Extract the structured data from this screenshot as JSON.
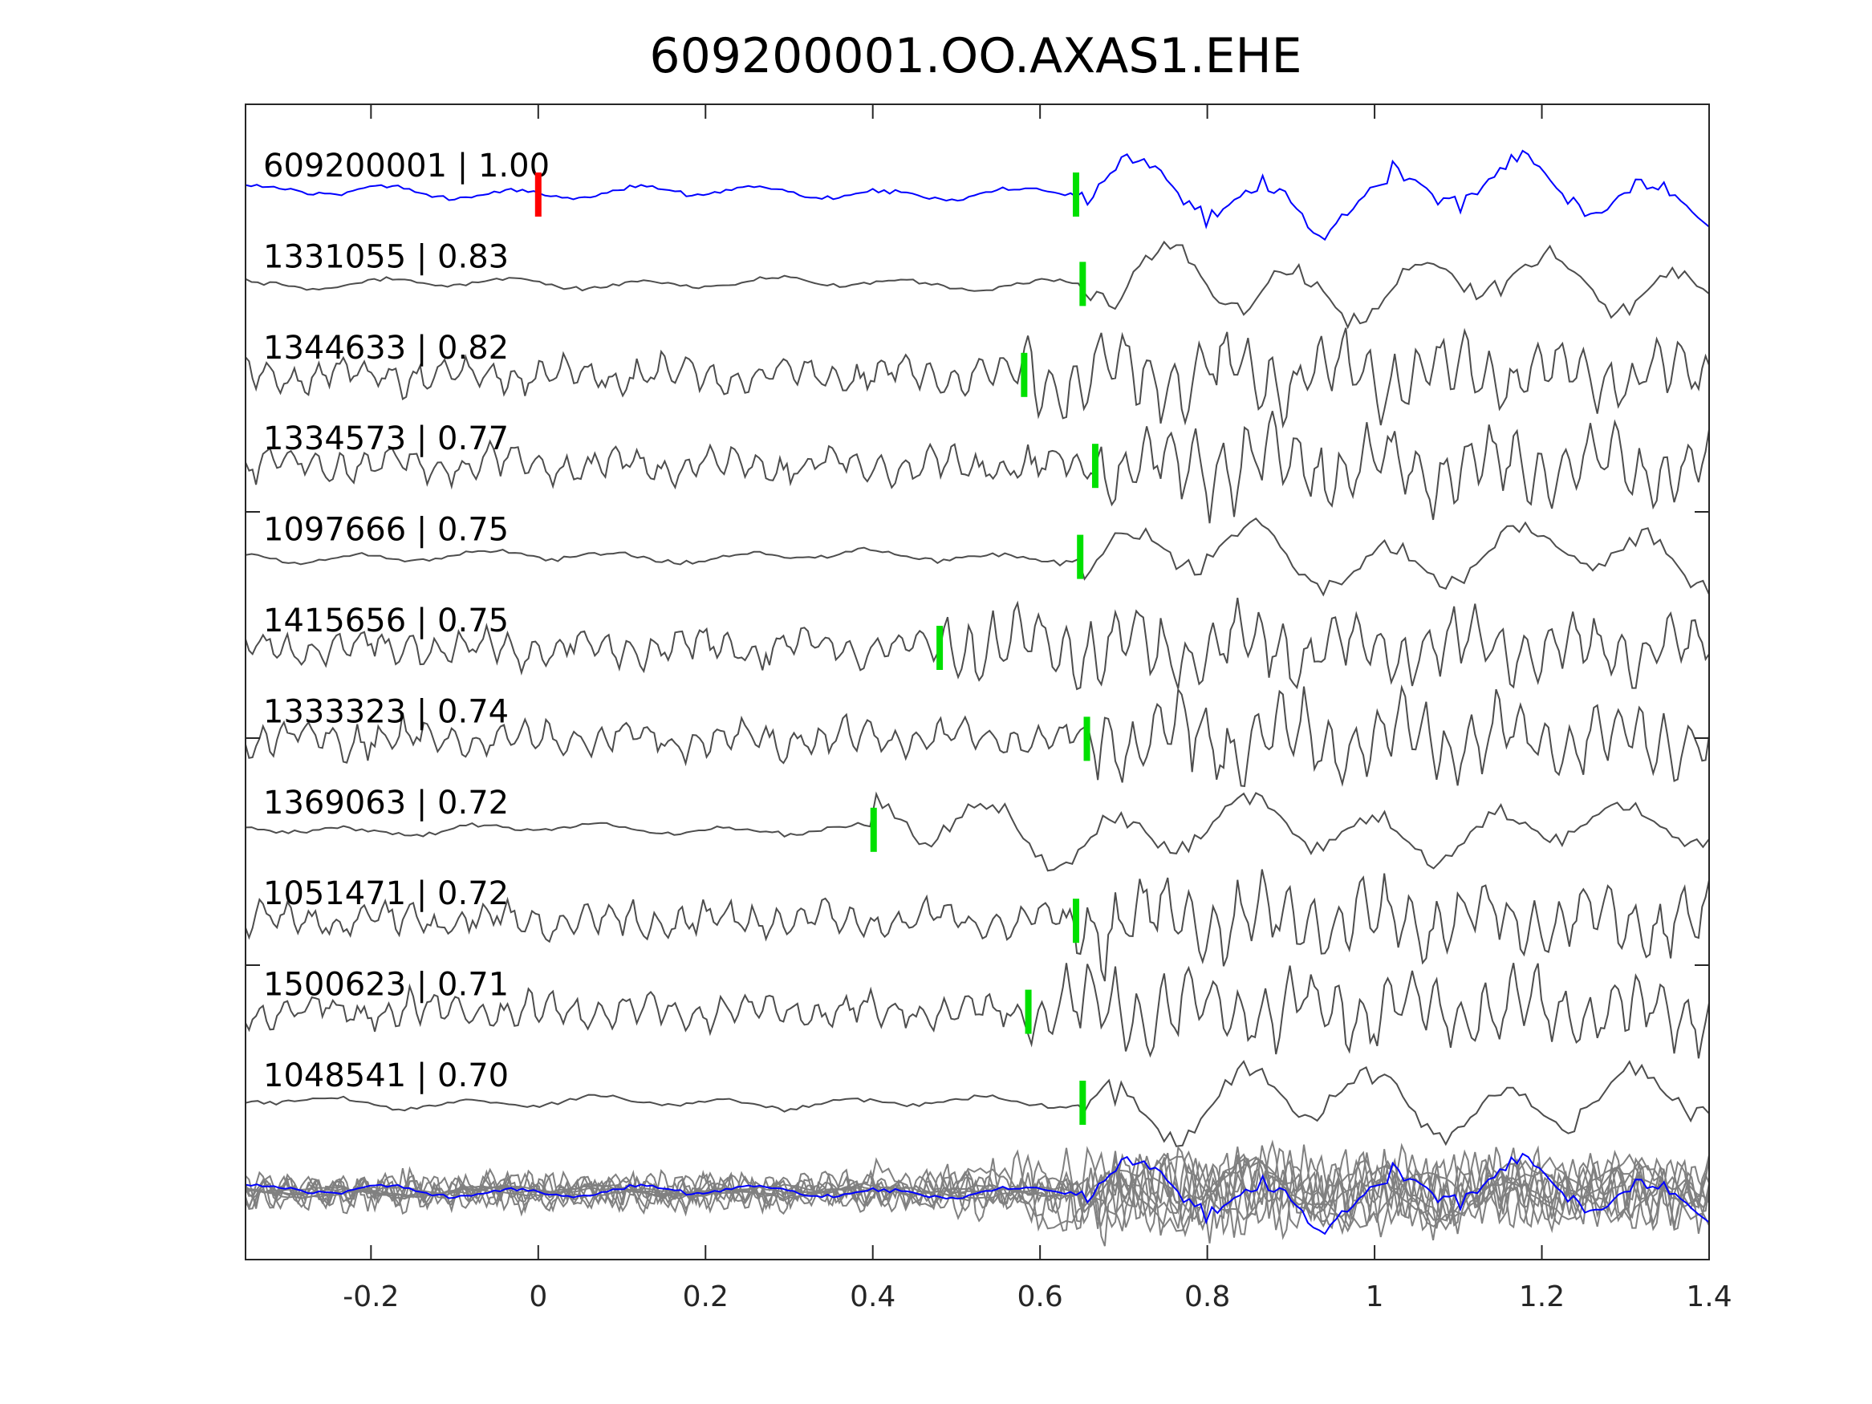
{
  "chart_data": {
    "type": "line",
    "title": "609200001.OO.AXAS1.EHE",
    "xlabel": "",
    "ylabel": "",
    "xlim": [
      -0.35,
      1.4
    ],
    "xticks": [
      "-0.2",
      "0",
      "0.2",
      "0.4",
      "0.6",
      "0.8",
      "1",
      "1.2",
      "1.4"
    ],
    "xtick_values": [
      -0.2,
      0,
      0.2,
      0.4,
      0.6,
      0.8,
      1.0,
      1.2,
      1.4
    ],
    "grid": false,
    "colors": {
      "reference": "#0000ff",
      "traces": "#4d4d4d",
      "stack": "#808080",
      "reference_pick": "#ff0000",
      "picks": "#00e000"
    },
    "traces": [
      {
        "label": "609200001 | 1.00",
        "id": "609200001",
        "cc": 1.0,
        "pick": 0.0,
        "pick2": 0.643,
        "reference": true
      },
      {
        "label": "1331055 | 0.83",
        "id": "1331055",
        "cc": 0.83,
        "pick": 0.651
      },
      {
        "label": "1344633 | 0.82",
        "id": "1344633",
        "cc": 0.82,
        "pick": 0.581
      },
      {
        "label": "1334573 | 0.77",
        "id": "1334573",
        "cc": 0.77,
        "pick": 0.666
      },
      {
        "label": "1097666 | 0.75",
        "id": "1097666",
        "cc": 0.75,
        "pick": 0.648
      },
      {
        "label": "1415656 | 0.75",
        "id": "1415656",
        "cc": 0.75,
        "pick": 0.48
      },
      {
        "label": "1333323 | 0.74",
        "id": "1333323",
        "cc": 0.74,
        "pick": 0.656
      },
      {
        "label": "1369063 | 0.72",
        "id": "1369063",
        "cc": 0.72,
        "pick": 0.401
      },
      {
        "label": "1051471 | 0.72",
        "id": "1051471",
        "cc": 0.72,
        "pick": 0.643
      },
      {
        "label": "1500623 | 0.71",
        "id": "1500623",
        "cc": 0.71,
        "pick": 0.586
      },
      {
        "label": "1048541 | 0.70",
        "id": "1048541",
        "cc": 0.7,
        "pick": 0.651
      }
    ]
  }
}
